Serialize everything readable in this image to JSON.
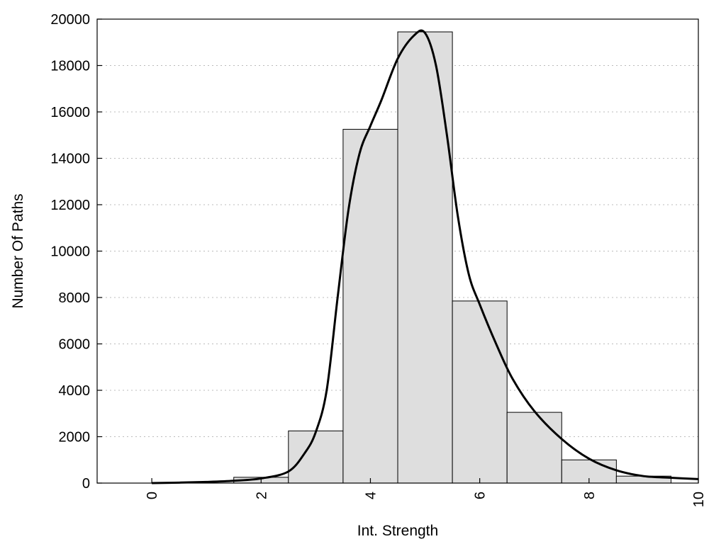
{
  "chart_data": {
    "type": "bar",
    "title": "",
    "xlabel": "Int. Strength",
    "ylabel": "Number Of Paths",
    "xlim": [
      -1,
      10
    ],
    "ylim": [
      0,
      20000
    ],
    "x_ticks": [
      0,
      2,
      4,
      6,
      8,
      10
    ],
    "x_tick_labels": [
      "0",
      "2",
      "4",
      "6",
      "8",
      "10"
    ],
    "y_ticks": [
      0,
      2000,
      4000,
      6000,
      8000,
      10000,
      12000,
      14000,
      16000,
      18000,
      20000
    ],
    "y_tick_labels": [
      "0",
      "2000",
      "4000",
      "6000",
      "8000",
      "10000",
      "12000",
      "14000",
      "16000",
      "18000",
      "20000"
    ],
    "grid": "horizontal dotted",
    "legend": "none",
    "bars": {
      "centers": [
        0,
        1,
        2,
        3,
        4,
        5,
        6,
        7,
        8,
        9
      ],
      "width": 1,
      "values": [
        0,
        0,
        250,
        2250,
        15250,
        19450,
        7850,
        3050,
        1000,
        300
      ],
      "color": "#dedede"
    },
    "curve": {
      "x": [
        0,
        0.5,
        1,
        1.5,
        2,
        2.5,
        2.8,
        3,
        3.2,
        3.4,
        3.6,
        3.8,
        4,
        4.2,
        4.5,
        4.8,
        5,
        5.2,
        5.4,
        5.6,
        5.8,
        6,
        6.3,
        6.6,
        7,
        7.5,
        8,
        8.5,
        9,
        9.5,
        10
      ],
      "y": [
        0,
        20,
        50,
        100,
        200,
        500,
        1300,
        2200,
        4000,
        8000,
        11800,
        14200,
        15400,
        16500,
        18300,
        19300,
        19400,
        18000,
        15000,
        11500,
        9000,
        7700,
        6000,
        4500,
        3100,
        1900,
        1050,
        550,
        300,
        230,
        170
      ],
      "color": "#000000"
    }
  }
}
